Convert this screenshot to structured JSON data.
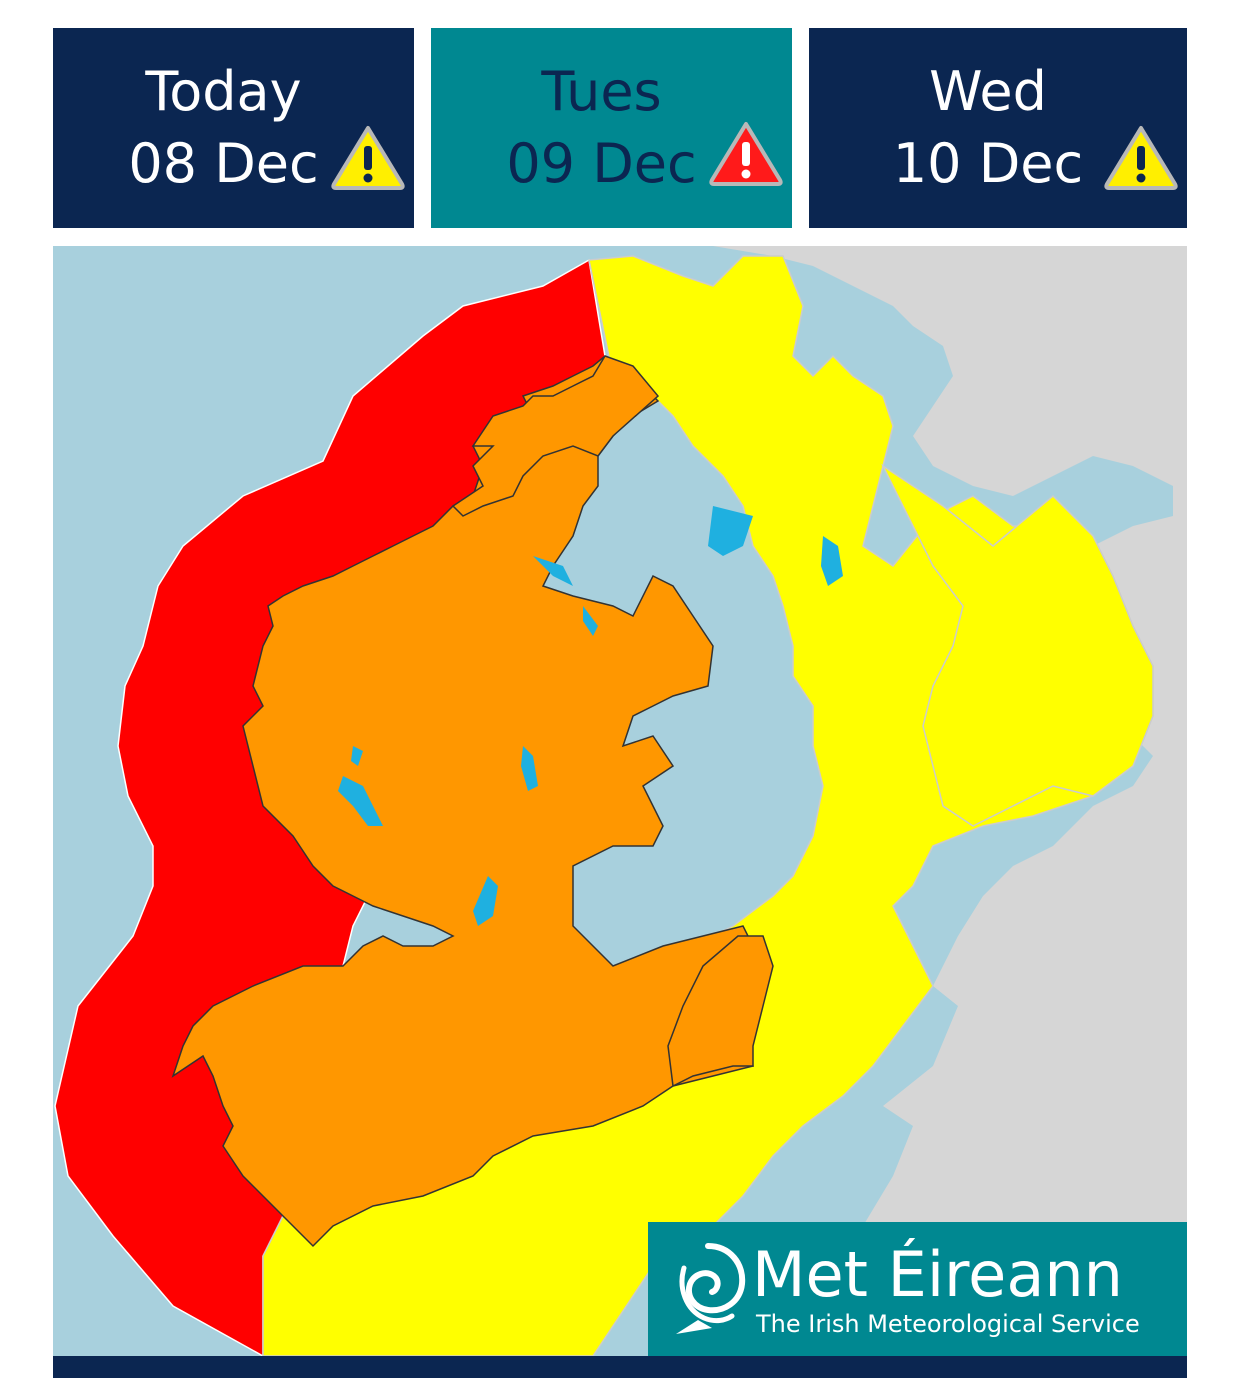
{
  "tabs": [
    {
      "day": "Today",
      "date": "08 Dec",
      "warning_level": "yellow",
      "icon": "warning-icon"
    },
    {
      "day": "Tues",
      "date": "09 Dec",
      "warning_level": "red",
      "icon": "warning-icon"
    },
    {
      "day": "Wed",
      "date": "10 Dec",
      "warning_level": "yellow",
      "icon": "warning-icon"
    }
  ],
  "colors": {
    "tab_dark": "#0b2651",
    "tab_selected": "#008891",
    "sea": "#a8d0dd",
    "land_other": "#d6d6d6",
    "warning_red": "#ff0000",
    "warning_orange": "#ff9700",
    "warning_yellow": "#ffff00",
    "lake": "#1fb0e0",
    "logo_bg": "#008891"
  },
  "map": {
    "selected_day": "Tues"
  },
  "logo": {
    "brand": "Met Éireann",
    "tagline": "The Irish Meteorological Service",
    "icon": "swirl-icon"
  }
}
